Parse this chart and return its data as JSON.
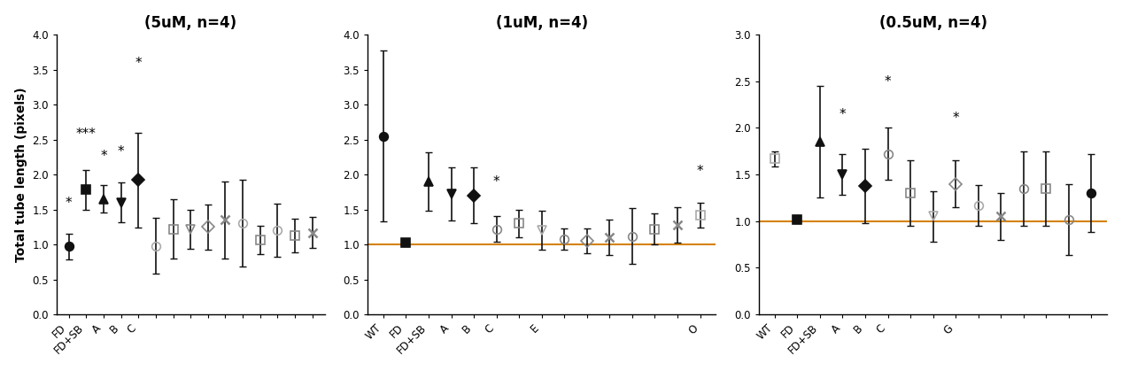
{
  "panel1": {
    "title": "(5uM, n=4)",
    "ylim": [
      0.0,
      4.0
    ],
    "yticks": [
      0.0,
      0.5,
      1.0,
      1.5,
      2.0,
      2.5,
      3.0,
      3.5,
      4.0
    ],
    "hline": null,
    "ylabel": "Total tube length (pixels)",
    "categories": [
      "FD",
      "FD+SB",
      "A",
      "B",
      "C",
      "",
      "",
      "",
      "",
      "",
      "",
      "",
      "",
      "",
      ""
    ],
    "means": [
      0.97,
      1.78,
      1.65,
      1.6,
      1.92,
      0.98,
      1.22,
      1.22,
      1.25,
      1.35,
      1.3,
      1.06,
      1.2,
      1.13,
      1.17
    ],
    "errors": [
      0.18,
      0.28,
      0.2,
      0.28,
      0.68,
      0.4,
      0.42,
      0.28,
      0.32,
      0.55,
      0.62,
      0.2,
      0.38,
      0.24,
      0.22
    ],
    "markers": [
      "o",
      "s",
      "^",
      "v",
      "D",
      "o",
      "s",
      "v",
      "D",
      "x",
      "o",
      "s",
      "o",
      "s",
      "x"
    ],
    "colors": [
      "#111111",
      "#111111",
      "#111111",
      "#111111",
      "#111111",
      "#aaaaaa",
      "#888888",
      "#888888",
      "#888888",
      "#888888",
      "#aaaaaa",
      "#888888",
      "#aaaaaa",
      "#888888",
      "#888888"
    ],
    "filled": [
      true,
      true,
      true,
      true,
      true,
      false,
      false,
      false,
      false,
      false,
      false,
      false,
      false,
      false,
      false
    ],
    "stars": [
      "*",
      "***",
      "*",
      "*",
      "*",
      "",
      "",
      "",
      "",
      "",
      "",
      "",
      "",
      "",
      ""
    ],
    "star_offset": [
      0.35,
      0.42,
      0.32,
      0.35,
      0.9,
      0,
      0,
      0,
      0,
      0,
      0,
      0,
      0,
      0,
      0
    ]
  },
  "panel2": {
    "title": "(1uM, n=4)",
    "ylim": [
      0.0,
      4.0
    ],
    "yticks": [
      0.0,
      0.5,
      1.0,
      1.5,
      2.0,
      2.5,
      3.0,
      3.5,
      4.0
    ],
    "hline": 1.0,
    "ylabel": "",
    "categories": [
      "WT",
      "FD",
      "FD+SB",
      "A",
      "B",
      "C",
      "",
      "E",
      "",
      "",
      "",
      "",
      "",
      "",
      "O"
    ],
    "means": [
      2.55,
      1.02,
      1.9,
      1.72,
      1.7,
      1.22,
      1.3,
      1.2,
      1.08,
      1.05,
      1.1,
      1.12,
      1.22,
      1.28,
      1.42
    ],
    "errors": [
      1.22,
      0.04,
      0.42,
      0.38,
      0.4,
      0.18,
      0.2,
      0.28,
      0.15,
      0.18,
      0.25,
      0.4,
      0.22,
      0.25,
      0.18
    ],
    "markers": [
      "o",
      "s",
      "^",
      "v",
      "D",
      "o",
      "s",
      "v",
      "o",
      "D",
      "x",
      "o",
      "s",
      "x",
      "s"
    ],
    "colors": [
      "#111111",
      "#111111",
      "#111111",
      "#111111",
      "#111111",
      "#888888",
      "#888888",
      "#aaaaaa",
      "#888888",
      "#888888",
      "#888888",
      "#888888",
      "#888888",
      "#888888",
      "#aaaaaa"
    ],
    "filled": [
      true,
      true,
      true,
      true,
      true,
      false,
      false,
      false,
      false,
      false,
      false,
      false,
      false,
      false,
      false
    ],
    "stars": [
      "",
      "",
      "",
      "",
      "",
      "*",
      "",
      "",
      "",
      "",
      "",
      "",
      "",
      "",
      "*"
    ],
    "star_offset": [
      0,
      0,
      0,
      0,
      0,
      0.4,
      0,
      0,
      0,
      0,
      0,
      0,
      0,
      0,
      0.35
    ]
  },
  "panel3": {
    "title": "(0.5uM, n=4)",
    "ylim": [
      0.0,
      3.0
    ],
    "yticks": [
      0.0,
      0.5,
      1.0,
      1.5,
      2.0,
      2.5,
      3.0
    ],
    "hline": 1.0,
    "ylabel": "",
    "categories": [
      "WT",
      "FD",
      "FD+SB",
      "A",
      "B",
      "C",
      "",
      "",
      "G",
      "",
      "",
      "",
      "",
      "",
      ""
    ],
    "means": [
      1.67,
      1.02,
      1.85,
      1.5,
      1.38,
      1.72,
      1.3,
      1.05,
      1.4,
      1.17,
      1.05,
      1.35,
      1.35,
      1.02,
      1.3
    ],
    "errors": [
      0.08,
      0.04,
      0.6,
      0.22,
      0.4,
      0.28,
      0.35,
      0.27,
      0.25,
      0.22,
      0.25,
      0.4,
      0.4,
      0.38,
      0.42
    ],
    "markers": [
      "s",
      "s",
      "^",
      "v",
      "D",
      "o",
      "s",
      "v",
      "D",
      "o",
      "x",
      "o",
      "s",
      "o",
      "o"
    ],
    "colors": [
      "#aaaaaa",
      "#111111",
      "#111111",
      "#111111",
      "#111111",
      "#888888",
      "#888888",
      "#aaaaaa",
      "#888888",
      "#aaaaaa",
      "#888888",
      "#888888",
      "#888888",
      "#888888",
      "#111111"
    ],
    "filled": [
      false,
      true,
      true,
      true,
      true,
      false,
      false,
      false,
      false,
      false,
      false,
      false,
      false,
      false,
      true
    ],
    "stars": [
      "",
      "",
      "",
      "*",
      "",
      "*",
      "",
      "",
      "*",
      "",
      "",
      "",
      "",
      "",
      ""
    ],
    "star_offset": [
      0,
      0,
      0,
      0.35,
      0,
      0.42,
      0,
      0,
      0.38,
      0,
      0,
      0,
      0,
      0,
      0
    ]
  },
  "hline_color": "#d4820a",
  "ecolor": "#111111",
  "elinewidth": 1.2,
  "capsize": 3,
  "markersize": 7,
  "fontsize_title": 12,
  "fontsize_tick": 8.5,
  "fontsize_star": 11,
  "fontsize_ylabel": 10
}
